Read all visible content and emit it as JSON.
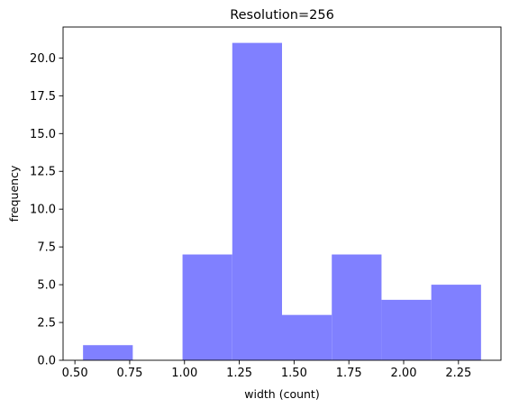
{
  "chart_data": {
    "type": "bar",
    "title": "Resolution=256",
    "xlabel": "width (count)",
    "ylabel": "frequency",
    "bins": [
      {
        "start": 0.537,
        "end": 0.764,
        "value": 1
      },
      {
        "start": 0.764,
        "end": 0.991,
        "value": 0
      },
      {
        "start": 0.991,
        "end": 1.218,
        "value": 7
      },
      {
        "start": 1.218,
        "end": 1.445,
        "value": 21
      },
      {
        "start": 1.445,
        "end": 1.672,
        "value": 3
      },
      {
        "start": 1.672,
        "end": 1.899,
        "value": 7
      },
      {
        "start": 1.899,
        "end": 2.126,
        "value": 4
      },
      {
        "start": 2.126,
        "end": 2.353,
        "value": 5
      }
    ],
    "xlim": [
      0.446,
      2.444
    ],
    "ylim": [
      0,
      22.05
    ],
    "xticks": [
      0.5,
      0.75,
      1.0,
      1.25,
      1.5,
      1.75,
      2.0,
      2.25
    ],
    "xtick_labels": [
      "0.50",
      "0.75",
      "1.00",
      "1.25",
      "1.50",
      "1.75",
      "2.00",
      "2.25"
    ],
    "yticks": [
      0,
      2.5,
      5,
      7.5,
      10,
      12.5,
      15,
      17.5,
      20
    ],
    "ytick_labels": [
      "0.0",
      "2.5",
      "5.0",
      "7.5",
      "10.0",
      "12.5",
      "15.0",
      "17.5",
      "20.0"
    ],
    "bar_color": "#8080ff",
    "grid": false
  }
}
